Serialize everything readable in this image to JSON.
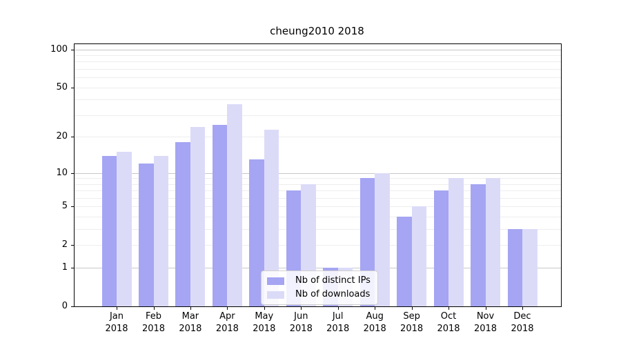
{
  "figure": {
    "title": "cheung2010 2018"
  },
  "chart_data": {
    "type": "bar",
    "title": "cheung2010 2018",
    "x": {
      "months": [
        "Jan",
        "Feb",
        "Mar",
        "Apr",
        "May",
        "Jun",
        "Jul",
        "Aug",
        "Sep",
        "Oct",
        "Nov",
        "Dec"
      ],
      "year": "2018"
    },
    "categories": [
      "Jan 2018",
      "Feb 2018",
      "Mar 2018",
      "Apr 2018",
      "May 2018",
      "Jun 2018",
      "Jul 2018",
      "Aug 2018",
      "Sep 2018",
      "Oct 2018",
      "Nov 2018",
      "Dec 2018"
    ],
    "series": [
      {
        "name": "Nb of distinct IPs",
        "color": "#a5a5f3",
        "values": [
          14,
          12,
          18,
          25,
          13,
          7,
          1,
          9,
          4,
          7,
          8,
          3
        ]
      },
      {
        "name": "Nb of downloads",
        "color": "#dbdbf8",
        "values": [
          15,
          14,
          24,
          37,
          23,
          8,
          1,
          10,
          5,
          9,
          9,
          3
        ]
      }
    ],
    "y_axis": {
      "scale": "log10(1+v)",
      "tick_values": [
        0,
        1,
        2,
        5,
        10,
        20,
        50,
        100
      ],
      "tick_labels": [
        "0",
        "1",
        "2",
        "5",
        "10",
        "20",
        "50",
        "100"
      ],
      "major_grid_values": [
        1,
        10,
        100
      ],
      "minor_grid_values": [
        2,
        3,
        4,
        5,
        6,
        7,
        8,
        9,
        20,
        30,
        40,
        50,
        60,
        70,
        80,
        90
      ],
      "ylim": [
        0,
        110
      ]
    },
    "legend": {
      "position": "lower-center",
      "entries": [
        "Nb of distinct IPs",
        "Nb of downloads"
      ]
    },
    "colors": {
      "grid_major": "#c8c8c8",
      "grid_minor": "#ededed",
      "spine": "#000000",
      "background": "#ffffff"
    }
  }
}
